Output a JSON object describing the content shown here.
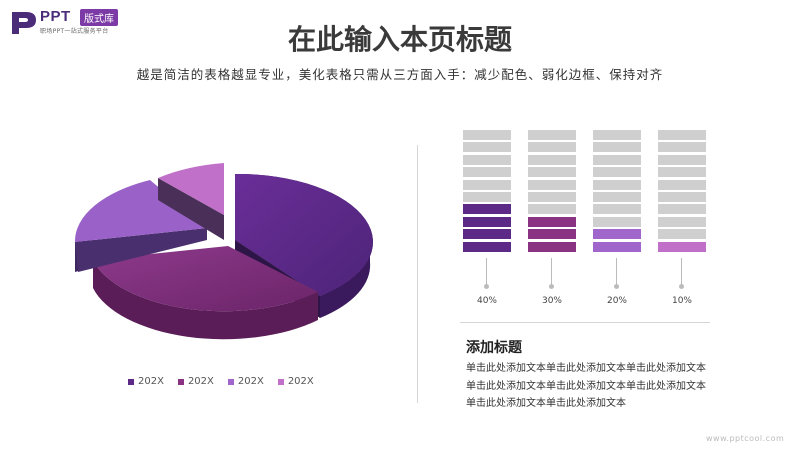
{
  "brand": {
    "name": "PPT",
    "badge": "版式库",
    "tagline": "职场PPT一站式服务平台",
    "color": "#4a2c79"
  },
  "page": {
    "title": "在此输入本页标题",
    "subtitle": "越是简洁的表格越显专业，美化表格只需从三方面入手：减少配色、弱化边框、保持对齐"
  },
  "pie": {
    "slices": [
      {
        "label": "202X",
        "color": "#5c2a86"
      },
      {
        "label": "202X",
        "color": "#8a3383"
      },
      {
        "label": "202X",
        "color": "#a066cc"
      },
      {
        "label": "202X",
        "color": "#c070c8"
      }
    ]
  },
  "bars": {
    "total_segments": 10,
    "items": [
      {
        "percent": "40%",
        "filled": 4,
        "color": "#5c2a86"
      },
      {
        "percent": "30%",
        "filled": 3,
        "color": "#8a3383"
      },
      {
        "percent": "20%",
        "filled": 2,
        "color": "#a066cc"
      },
      {
        "percent": "10%",
        "filled": 1,
        "color": "#c070c8"
      }
    ],
    "empty_color": "#cfcfcf"
  },
  "section": {
    "heading": "添加标题",
    "body_lines": [
      "单击此处添加文本单击此处添加文本单击此处添加文本",
      "单击此处添加文本单击此处添加文本单击此处添加文本",
      "单击此处添加文本单击此处添加文本"
    ]
  },
  "watermark": "www.pptcool.com"
}
